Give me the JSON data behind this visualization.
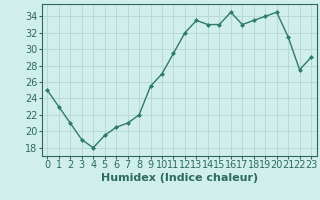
{
  "x": [
    0,
    1,
    2,
    3,
    4,
    5,
    6,
    7,
    8,
    9,
    10,
    11,
    12,
    13,
    14,
    15,
    16,
    17,
    18,
    19,
    20,
    21,
    22,
    23
  ],
  "y": [
    25,
    23,
    21,
    19,
    18,
    19.5,
    20.5,
    21,
    22,
    25.5,
    27,
    29.5,
    32,
    33.5,
    33,
    33,
    34.5,
    33,
    33.5,
    34,
    34.5,
    31.5,
    27.5,
    29
  ],
  "line_color": "#2d7b6e",
  "marker": "D",
  "marker_size": 2.5,
  "bg_color": "#d0eeeb",
  "grid_color": "#b8d9d5",
  "xlabel": "Humidex (Indice chaleur)",
  "ylim": [
    17,
    35.5
  ],
  "xlim": [
    -0.5,
    23.5
  ],
  "yticks": [
    18,
    20,
    22,
    24,
    26,
    28,
    30,
    32,
    34
  ],
  "xticks": [
    0,
    1,
    2,
    3,
    4,
    5,
    6,
    7,
    8,
    9,
    10,
    11,
    12,
    13,
    14,
    15,
    16,
    17,
    18,
    19,
    20,
    21,
    22,
    23
  ],
  "xlabel_fontsize": 8,
  "tick_fontsize": 7,
  "axis_color": "#2d6b60",
  "spine_color": "#2d6b60",
  "linewidth": 1.0
}
